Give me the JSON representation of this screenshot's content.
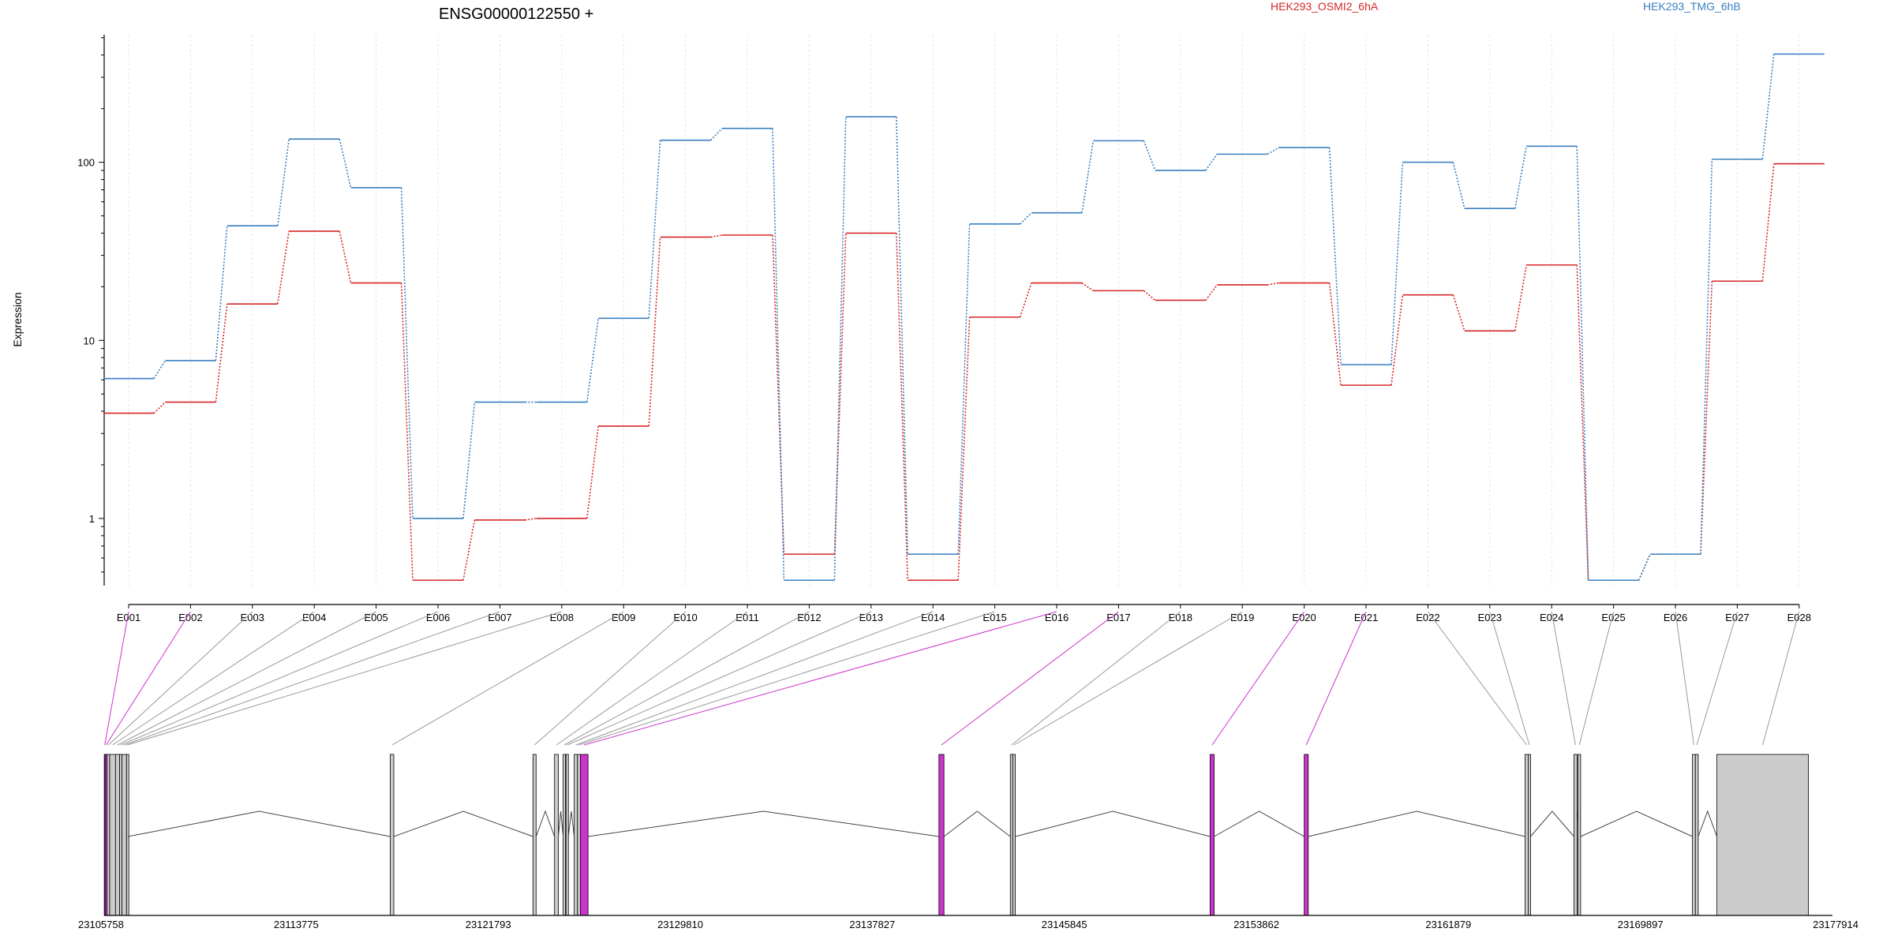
{
  "chart_data": {
    "type": "line",
    "title": "ENSG00000122550 +",
    "ylabel": "Expression",
    "y_scale": "log",
    "ylim": [
      0.42,
      520
    ],
    "y_ticks": [
      1,
      10,
      100
    ],
    "y_tick_labels": [
      "1",
      "10",
      "100"
    ],
    "grid": "vertical dotted lines at each exon",
    "legend_position": "top",
    "categories": [
      "E001",
      "E002",
      "E003",
      "E004",
      "E005",
      "E006",
      "E007",
      "E008",
      "E009",
      "E010",
      "E011",
      "E012",
      "E013",
      "E014",
      "E015",
      "E016",
      "E017",
      "E018",
      "E019",
      "E020",
      "E021",
      "E022",
      "E023",
      "E024",
      "E025",
      "E026",
      "E027",
      "E028"
    ],
    "series": [
      {
        "name": "HEK293_OSMI2_6hA",
        "color": "#d62728",
        "values": [
          3.9,
          4.5,
          16,
          41,
          21,
          0.45,
          0.98,
          1.0,
          3.3,
          38,
          39,
          0.63,
          40,
          0.45,
          13.5,
          21,
          19,
          16.8,
          20.5,
          21,
          5.6,
          18,
          11.3,
          26.5,
          0.45,
          0.63,
          21.5,
          98
        ]
      },
      {
        "name": "HEK293_TMG_6hB",
        "color": "#3a7fc0",
        "values": [
          6.1,
          7.7,
          44,
          135,
          72,
          1.0,
          4.5,
          4.5,
          13.3,
          133,
          155,
          0.45,
          180,
          0.63,
          45,
          52,
          132,
          90,
          111,
          121,
          7.3,
          100,
          55,
          123,
          0.45,
          0.63,
          104,
          405
        ]
      }
    ],
    "gene_axis": {
      "tick_labels": [
        "23105758",
        "23113775",
        "23121793",
        "23129810",
        "23137827",
        "23145845",
        "23153862",
        "23161879",
        "23169897",
        "23177914"
      ]
    },
    "exon_map": {
      "highlight_color": "#cc33cc",
      "exons": [
        {
          "id": "E001",
          "start": 23105762,
          "end": 23105799,
          "highlight": true
        },
        {
          "id": "E002",
          "start": 23105799,
          "end": 23105880,
          "highlight": true
        },
        {
          "id": "E003",
          "start": 23105880,
          "end": 23105990,
          "highlight": false
        },
        {
          "id": "E004",
          "start": 23105990,
          "end": 23106230,
          "highlight": false
        },
        {
          "id": "E005",
          "start": 23106230,
          "end": 23106400,
          "highlight": false
        },
        {
          "id": "E006",
          "start": 23106400,
          "end": 23106500,
          "highlight": false
        },
        {
          "id": "E007",
          "start": 23106500,
          "end": 23106690,
          "highlight": false
        },
        {
          "id": "E008",
          "start": 23106690,
          "end": 23106750,
          "highlight": false
        },
        {
          "id": "E009",
          "start": 23117700,
          "end": 23117850,
          "highlight": false
        },
        {
          "id": "E010",
          "start": 23123660,
          "end": 23123790,
          "highlight": false
        },
        {
          "id": "E011",
          "start": 23124560,
          "end": 23124720,
          "highlight": false
        },
        {
          "id": "E012",
          "start": 23124920,
          "end": 23125010,
          "highlight": false
        },
        {
          "id": "E013",
          "start": 23125040,
          "end": 23125140,
          "highlight": false
        },
        {
          "id": "E014",
          "start": 23125380,
          "end": 23125520,
          "highlight": false
        },
        {
          "id": "E015",
          "start": 23125520,
          "end": 23125640,
          "highlight": false
        },
        {
          "id": "E016",
          "start": 23125640,
          "end": 23125960,
          "highlight": true
        },
        {
          "id": "E017",
          "start": 23140610,
          "end": 23140820,
          "highlight": true
        },
        {
          "id": "E018",
          "start": 23143590,
          "end": 23143690,
          "highlight": false
        },
        {
          "id": "E019",
          "start": 23143690,
          "end": 23143800,
          "highlight": false
        },
        {
          "id": "E020",
          "start": 23151930,
          "end": 23152100,
          "highlight": true
        },
        {
          "id": "E021",
          "start": 23155860,
          "end": 23156030,
          "highlight": true
        },
        {
          "id": "E022",
          "start": 23165080,
          "end": 23165210,
          "highlight": false
        },
        {
          "id": "E023",
          "start": 23165210,
          "end": 23165310,
          "highlight": false
        },
        {
          "id": "E024",
          "start": 23167120,
          "end": 23167250,
          "highlight": false
        },
        {
          "id": "E025",
          "start": 23167290,
          "end": 23167400,
          "highlight": false
        },
        {
          "id": "E026",
          "start": 23172070,
          "end": 23172190,
          "highlight": false
        },
        {
          "id": "E027",
          "start": 23172190,
          "end": 23172310,
          "highlight": false
        },
        {
          "id": "E028",
          "start": 23173090,
          "end": 23176910,
          "highlight": false
        }
      ]
    }
  }
}
